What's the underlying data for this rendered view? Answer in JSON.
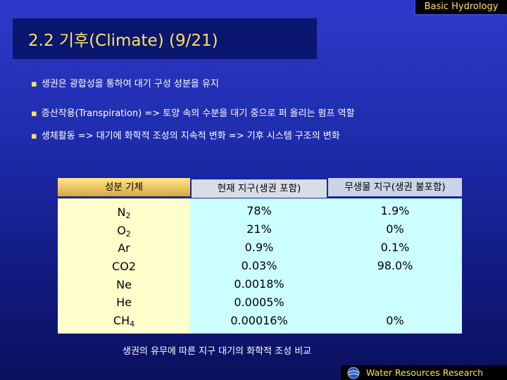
{
  "header": {
    "tag": "Basic Hydrology"
  },
  "slide": {
    "title": "2.2 기후(Climate) (9/21)"
  },
  "bullets": [
    "생권은 광합성을 통하여 대기 구성 성분을 유지",
    "증산작용(Transpiration) => 토양 속의 수분을 대기 중으로 퍼 올리는 펌프 역할",
    "생체활동 => 대기에 화학적 조성의 지속적 변화 => 기후 시스템 구조의 변화"
  ],
  "bullet_marker": "▪",
  "table": {
    "headers": [
      "성분 기체",
      "현재 지구(생권 포함)",
      "무생물 지구(생권 불포함)"
    ],
    "gases": [
      {
        "base": "N",
        "sub": "2"
      },
      {
        "base": "O",
        "sub": "2"
      },
      {
        "base": "Ar",
        "sub": ""
      },
      {
        "base": "CO2",
        "sub": ""
      },
      {
        "base": "Ne",
        "sub": ""
      },
      {
        "base": "He",
        "sub": ""
      },
      {
        "base": "CH",
        "sub": "4"
      }
    ],
    "current": [
      "78%",
      "21%",
      "0.9%",
      "0.03%",
      "0.0018%",
      "0.0005%",
      "0.00016%"
    ],
    "abiotic": [
      "1.9%",
      "0%",
      "0.1%",
      "98.0%",
      "",
      "",
      "0%"
    ]
  },
  "caption": "생권의 유무에 따른 지구 대기의 화학적 조성 비교",
  "footer": {
    "text": "Water Resources Research"
  },
  "colors": {
    "accent": "#ffe35a",
    "background_top": "#2f39c9",
    "background_bottom": "#0b105e",
    "col_gas_bg": "#ffffcc",
    "col_value_bg": "#ccffff"
  }
}
